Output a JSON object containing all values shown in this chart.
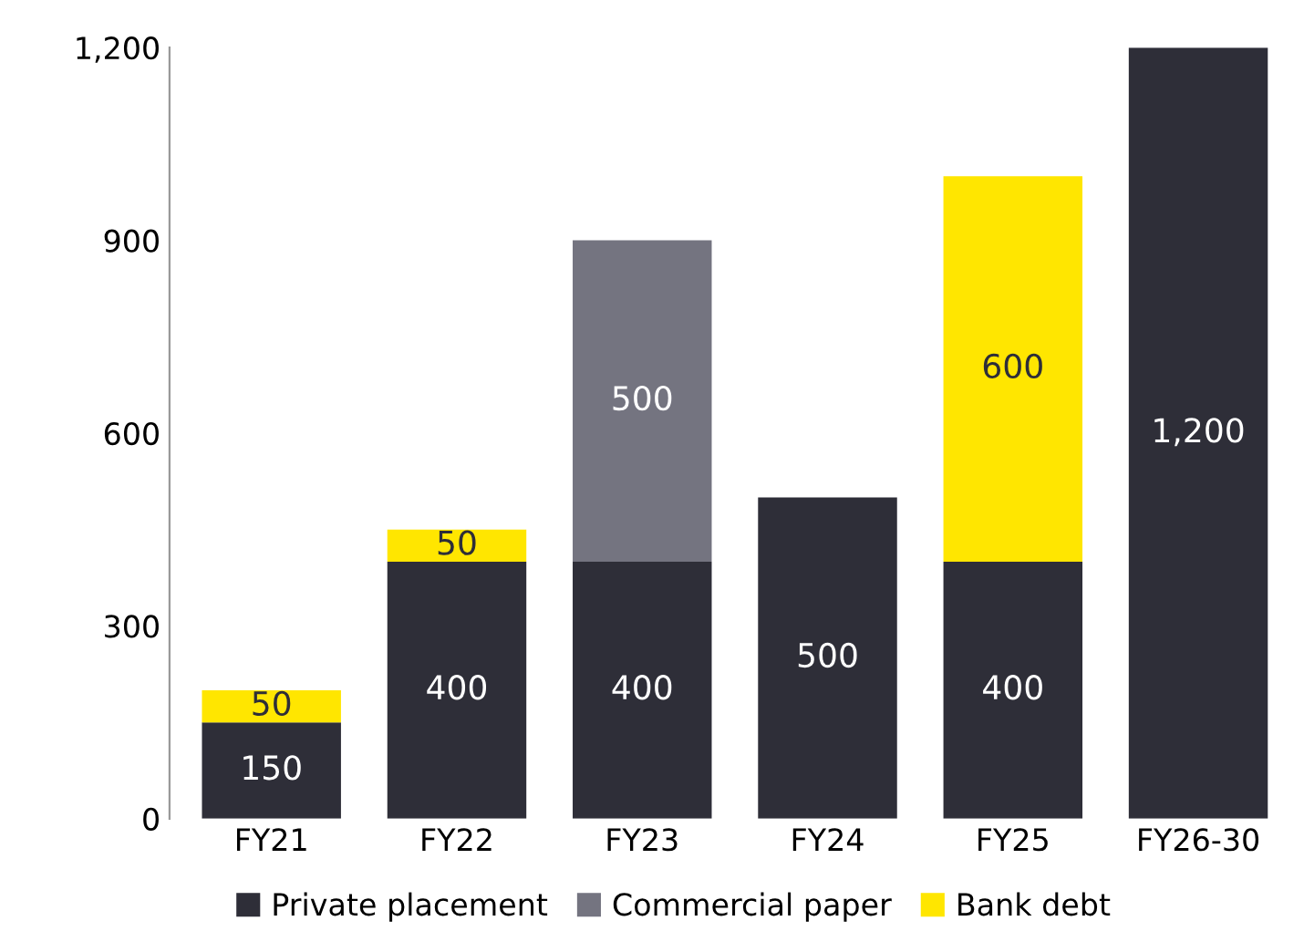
{
  "chart_data": {
    "type": "bar",
    "stacked": true,
    "categories": [
      "FY21",
      "FY22",
      "FY23",
      "FY24",
      "FY25",
      "FY26-30"
    ],
    "series": [
      {
        "name": "Private placement",
        "color": "#2e2e38",
        "values": [
          150,
          400,
          400,
          500,
          400,
          1200
        ],
        "value_labels": [
          "150",
          "400",
          "400",
          "500",
          "400",
          "1,200"
        ]
      },
      {
        "name": "Commercial paper",
        "color": "#747480",
        "values": [
          null,
          null,
          500,
          null,
          null,
          null
        ],
        "value_labels": [
          null,
          null,
          "500",
          null,
          null,
          null
        ]
      },
      {
        "name": "Bank debt",
        "color": "#ffe600",
        "values": [
          50,
          50,
          null,
          null,
          600,
          null
        ],
        "value_labels": [
          "50",
          "50",
          null,
          null,
          "600",
          null
        ]
      }
    ],
    "ylim": [
      0,
      1200
    ],
    "yticks": [
      0,
      300,
      600,
      900,
      {
        "value": 1200,
        "label": "1,200"
      }
    ],
    "grid": false,
    "legend": "bottom"
  }
}
